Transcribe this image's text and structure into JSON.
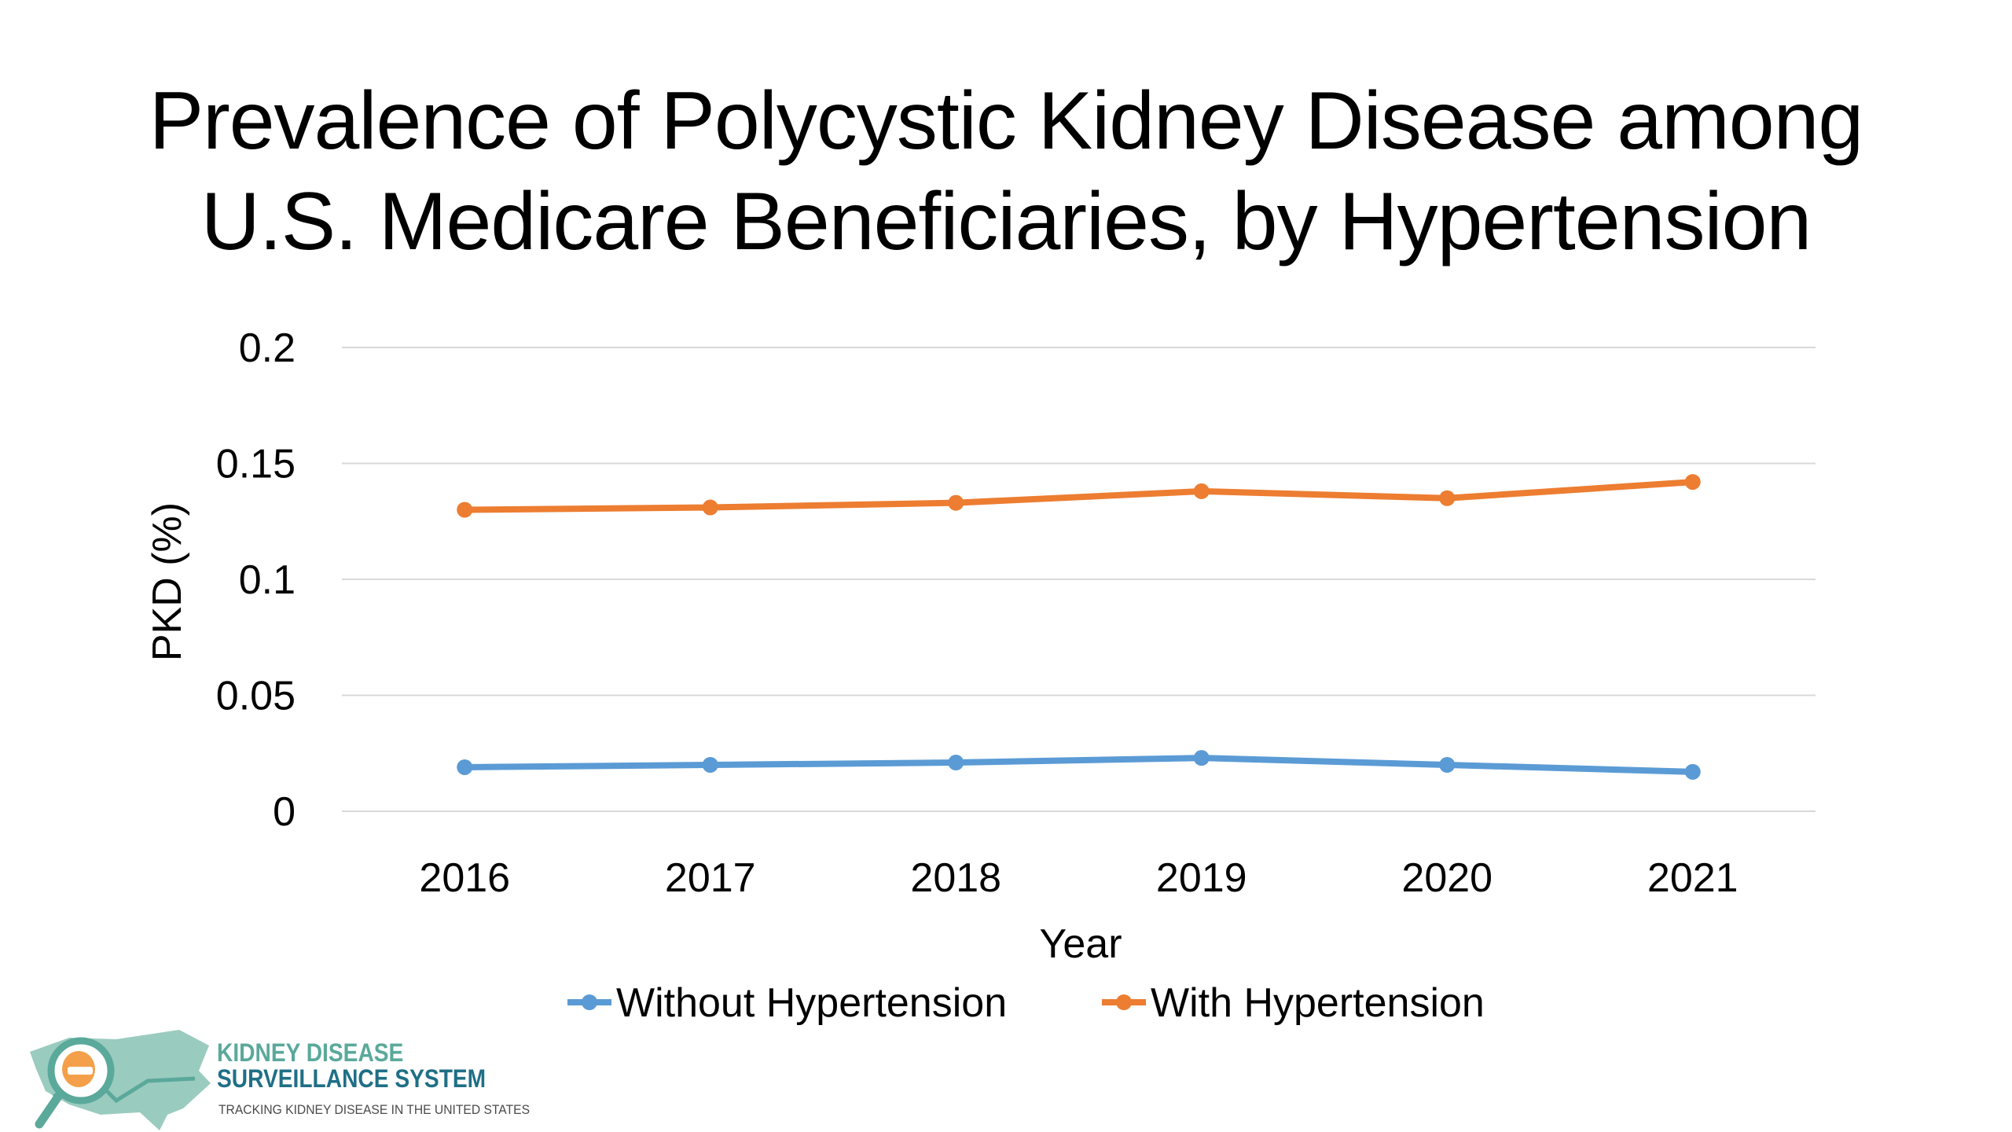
{
  "title": {
    "line1": "Prevalence of Polycystic Kidney Disease among",
    "line2": "U.S. Medicare Beneficiaries, by Hypertension"
  },
  "chart_data": {
    "type": "line",
    "title": "Prevalence of Polycystic Kidney Disease among U.S. Medicare Beneficiaries, by Hypertension",
    "xlabel": "Year",
    "ylabel": "PKD (%)",
    "x": [
      "2016",
      "2017",
      "2018",
      "2019",
      "2020",
      "2021"
    ],
    "ylim": [
      0,
      0.2
    ],
    "yticks": [
      "0",
      "0.05",
      "0.1",
      "0.15",
      "0.2"
    ],
    "grid": true,
    "legend_position": "bottom",
    "series": [
      {
        "name": "Without Hypertension",
        "color": "#5b9bd5",
        "values": [
          0.019,
          0.02,
          0.021,
          0.023,
          0.02,
          0.017
        ]
      },
      {
        "name": "With Hypertension",
        "color": "#ed7d31",
        "values": [
          0.13,
          0.131,
          0.133,
          0.138,
          0.135,
          0.142
        ]
      }
    ]
  },
  "logo": {
    "line1": "KIDNEY DISEASE",
    "line2": "SURVEILLANCE SYSTEM",
    "tagline": "TRACKING KIDNEY DISEASE IN THE UNITED STATES",
    "colors": {
      "teal": "#5aa99b",
      "navy": "#1f6f86",
      "orange": "#f4a04a"
    }
  }
}
